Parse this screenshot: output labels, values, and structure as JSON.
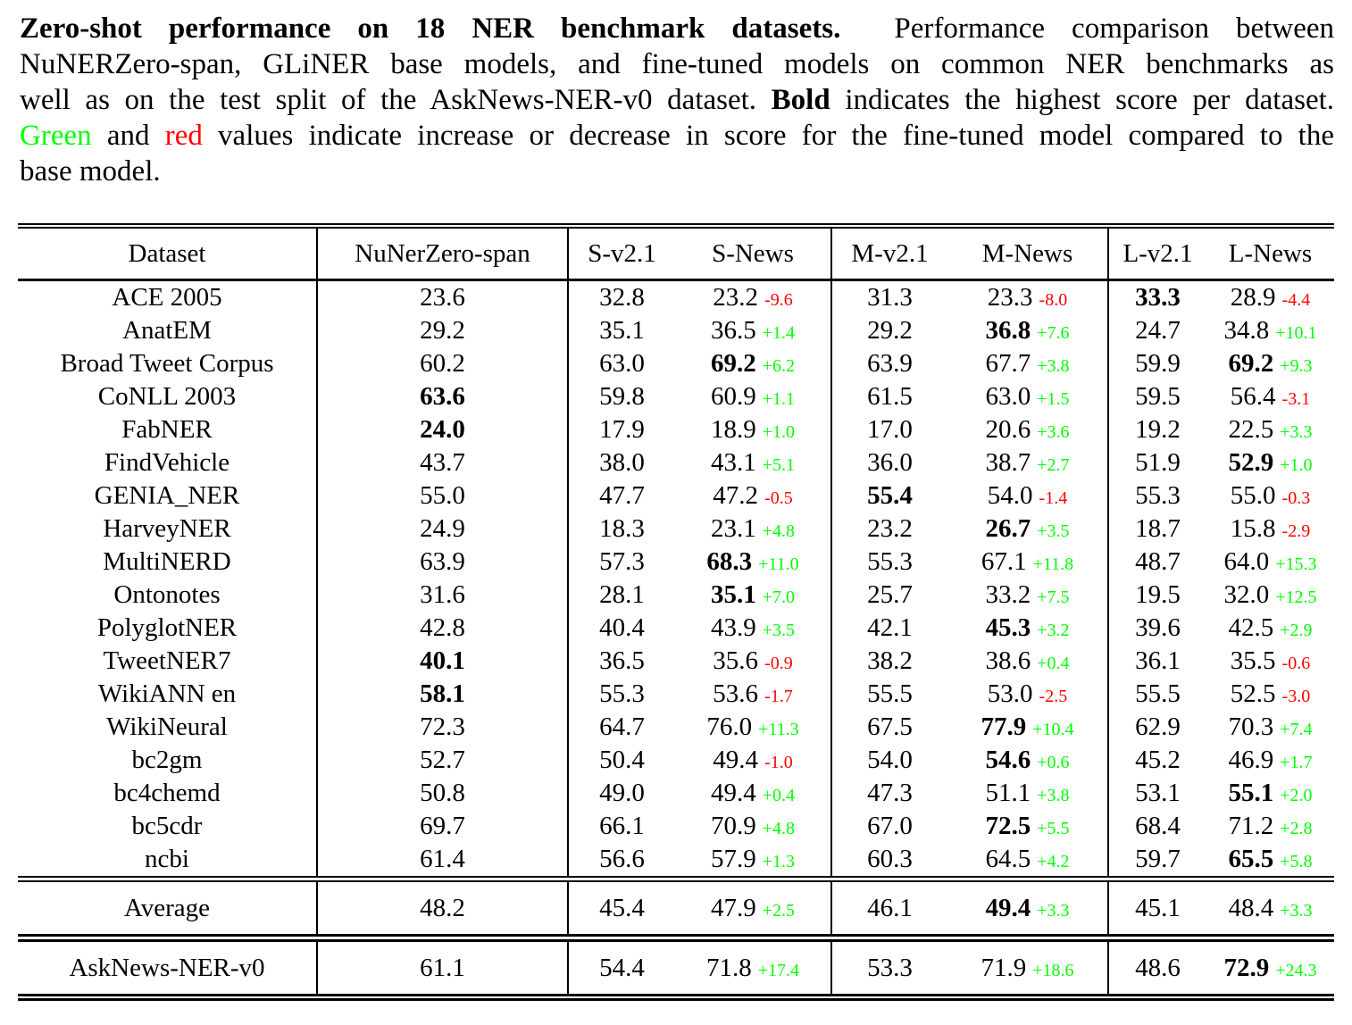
{
  "colors": {
    "increase": "#00ff00",
    "decrease": "#ff0000",
    "text": "#000000",
    "background": "#ffffff"
  },
  "caption": {
    "lines": [
      {
        "segments": [
          {
            "t": "Zero-shot performance on 18 NER benchmark datasets."
          },
          {
            "t": "  Performance comparison between"
          }
        ]
      },
      {
        "segments": [
          {
            "t": "NuNERZero-span, GLiNER base models, and fine-tuned models on common NER benchmarks as"
          }
        ]
      },
      {
        "segments": [
          {
            "t": "well as on the test split of the AskNews-NER-v0 dataset. "
          },
          {
            "t": "Bold"
          },
          {
            "t": " indicates the highest score per dataset."
          }
        ]
      },
      {
        "segments": [
          {
            "t": "Green"
          },
          {
            "t": " and "
          },
          {
            "t": "red"
          },
          {
            "t": " values indicate increase or decrease in score for the fine-tuned model compared to the"
          }
        ]
      },
      {
        "segments": [
          {
            "t": "base model."
          }
        ]
      }
    ]
  },
  "table": {
    "headers": [
      "Dataset",
      "NuNerZero-span",
      "S-v2.1",
      "S-News",
      "M-v2.1",
      "M-News",
      "L-v2.1",
      "L-News"
    ],
    "rows": [
      {
        "dataset": "ACE 2005",
        "cells": [
          {
            "v": "23.6"
          },
          {
            "v": "32.8"
          },
          {
            "v": "23.2",
            "delta": "-9.6"
          },
          {
            "v": "31.3"
          },
          {
            "v": "23.3",
            "delta": "-8.0"
          },
          {
            "v": "33.3",
            "bold": true
          },
          {
            "v": "28.9",
            "delta": "-4.4"
          }
        ]
      },
      {
        "dataset": "AnatEM",
        "cells": [
          {
            "v": "29.2"
          },
          {
            "v": "35.1"
          },
          {
            "v": "36.5",
            "delta": "+1.4"
          },
          {
            "v": "29.2"
          },
          {
            "v": "36.8",
            "bold": true,
            "delta": "+7.6"
          },
          {
            "v": "24.7"
          },
          {
            "v": "34.8",
            "delta": "+10.1"
          }
        ]
      },
      {
        "dataset": "Broad Tweet Corpus",
        "cells": [
          {
            "v": "60.2"
          },
          {
            "v": "63.0"
          },
          {
            "v": "69.2",
            "bold": true,
            "delta": "+6.2"
          },
          {
            "v": "63.9"
          },
          {
            "v": "67.7",
            "delta": "+3.8"
          },
          {
            "v": "59.9"
          },
          {
            "v": "69.2",
            "bold": true,
            "delta": "+9.3"
          }
        ]
      },
      {
        "dataset": "CoNLL 2003",
        "cells": [
          {
            "v": "63.6",
            "bold": true
          },
          {
            "v": "59.8"
          },
          {
            "v": "60.9",
            "delta": "+1.1"
          },
          {
            "v": "61.5"
          },
          {
            "v": "63.0",
            "delta": "+1.5"
          },
          {
            "v": "59.5"
          },
          {
            "v": "56.4",
            "delta": "-3.1"
          }
        ]
      },
      {
        "dataset": "FabNER",
        "cells": [
          {
            "v": "24.0",
            "bold": true
          },
          {
            "v": "17.9"
          },
          {
            "v": "18.9",
            "delta": "+1.0"
          },
          {
            "v": "17.0"
          },
          {
            "v": "20.6",
            "delta": "+3.6"
          },
          {
            "v": "19.2"
          },
          {
            "v": "22.5",
            "delta": "+3.3"
          }
        ]
      },
      {
        "dataset": "FindVehicle",
        "cells": [
          {
            "v": "43.7"
          },
          {
            "v": "38.0"
          },
          {
            "v": "43.1",
            "delta": "+5.1"
          },
          {
            "v": "36.0"
          },
          {
            "v": "38.7",
            "delta": "+2.7"
          },
          {
            "v": "51.9"
          },
          {
            "v": "52.9",
            "bold": true,
            "delta": "+1.0"
          }
        ]
      },
      {
        "dataset": "GENIA_NER",
        "cells": [
          {
            "v": "55.0"
          },
          {
            "v": "47.7"
          },
          {
            "v": "47.2",
            "delta": "-0.5"
          },
          {
            "v": "55.4",
            "bold": true
          },
          {
            "v": "54.0",
            "delta": "-1.4"
          },
          {
            "v": "55.3"
          },
          {
            "v": "55.0",
            "delta": "-0.3"
          }
        ]
      },
      {
        "dataset": "HarveyNER",
        "cells": [
          {
            "v": "24.9"
          },
          {
            "v": "18.3"
          },
          {
            "v": "23.1",
            "delta": "+4.8"
          },
          {
            "v": "23.2"
          },
          {
            "v": "26.7",
            "bold": true,
            "delta": "+3.5"
          },
          {
            "v": "18.7"
          },
          {
            "v": "15.8",
            "delta": "-2.9"
          }
        ]
      },
      {
        "dataset": "MultiNERD",
        "cells": [
          {
            "v": "63.9"
          },
          {
            "v": "57.3"
          },
          {
            "v": "68.3",
            "bold": true,
            "delta": "+11.0"
          },
          {
            "v": "55.3"
          },
          {
            "v": "67.1",
            "delta": "+11.8"
          },
          {
            "v": "48.7"
          },
          {
            "v": "64.0",
            "delta": "+15.3"
          }
        ]
      },
      {
        "dataset": "Ontonotes",
        "cells": [
          {
            "v": "31.6"
          },
          {
            "v": "28.1"
          },
          {
            "v": "35.1",
            "bold": true,
            "delta": "+7.0"
          },
          {
            "v": "25.7"
          },
          {
            "v": "33.2",
            "delta": "+7.5"
          },
          {
            "v": "19.5"
          },
          {
            "v": "32.0",
            "delta": "+12.5"
          }
        ]
      },
      {
        "dataset": "PolyglotNER",
        "cells": [
          {
            "v": "42.8"
          },
          {
            "v": "40.4"
          },
          {
            "v": "43.9",
            "delta": "+3.5"
          },
          {
            "v": "42.1"
          },
          {
            "v": "45.3",
            "bold": true,
            "delta": "+3.2"
          },
          {
            "v": "39.6"
          },
          {
            "v": "42.5",
            "delta": "+2.9"
          }
        ]
      },
      {
        "dataset": "TweetNER7",
        "cells": [
          {
            "v": "40.1",
            "bold": true
          },
          {
            "v": "36.5"
          },
          {
            "v": "35.6",
            "delta": "-0.9"
          },
          {
            "v": "38.2"
          },
          {
            "v": "38.6",
            "delta": "+0.4"
          },
          {
            "v": "36.1"
          },
          {
            "v": "35.5",
            "delta": "-0.6"
          }
        ]
      },
      {
        "dataset": "WikiANN en",
        "cells": [
          {
            "v": "58.1",
            "bold": true
          },
          {
            "v": "55.3"
          },
          {
            "v": "53.6",
            "delta": "-1.7"
          },
          {
            "v": "55.5"
          },
          {
            "v": "53.0",
            "delta": "-2.5"
          },
          {
            "v": "55.5"
          },
          {
            "v": "52.5",
            "delta": "-3.0"
          }
        ]
      },
      {
        "dataset": "WikiNeural",
        "cells": [
          {
            "v": "72.3"
          },
          {
            "v": "64.7"
          },
          {
            "v": "76.0",
            "delta": "+11.3"
          },
          {
            "v": "67.5"
          },
          {
            "v": "77.9",
            "bold": true,
            "delta": "+10.4"
          },
          {
            "v": "62.9"
          },
          {
            "v": "70.3",
            "delta": "+7.4"
          }
        ]
      },
      {
        "dataset": "bc2gm",
        "cells": [
          {
            "v": "52.7"
          },
          {
            "v": "50.4"
          },
          {
            "v": "49.4",
            "delta": "-1.0"
          },
          {
            "v": "54.0"
          },
          {
            "v": "54.6",
            "bold": true,
            "delta": "+0.6"
          },
          {
            "v": "45.2"
          },
          {
            "v": "46.9",
            "delta": "+1.7"
          }
        ]
      },
      {
        "dataset": "bc4chemd",
        "cells": [
          {
            "v": "50.8"
          },
          {
            "v": "49.0"
          },
          {
            "v": "49.4",
            "delta": "+0.4"
          },
          {
            "v": "47.3"
          },
          {
            "v": "51.1",
            "delta": "+3.8"
          },
          {
            "v": "53.1"
          },
          {
            "v": "55.1",
            "bold": true,
            "delta": "+2.0"
          }
        ]
      },
      {
        "dataset": "bc5cdr",
        "cells": [
          {
            "v": "69.7"
          },
          {
            "v": "66.1"
          },
          {
            "v": "70.9",
            "delta": "+4.8"
          },
          {
            "v": "67.0"
          },
          {
            "v": "72.5",
            "bold": true,
            "delta": "+5.5"
          },
          {
            "v": "68.4"
          },
          {
            "v": "71.2",
            "delta": "+2.8"
          }
        ]
      },
      {
        "dataset": "ncbi",
        "cells": [
          {
            "v": "61.4"
          },
          {
            "v": "56.6"
          },
          {
            "v": "57.9",
            "delta": "+1.3"
          },
          {
            "v": "60.3"
          },
          {
            "v": "64.5",
            "delta": "+4.2"
          },
          {
            "v": "59.7"
          },
          {
            "v": "65.5",
            "bold": true,
            "delta": "+5.8"
          }
        ]
      }
    ],
    "average": {
      "dataset": "Average",
      "cells": [
        {
          "v": "48.2"
        },
        {
          "v": "45.4"
        },
        {
          "v": "47.9",
          "delta": "+2.5"
        },
        {
          "v": "46.1"
        },
        {
          "v": "49.4",
          "bold": true,
          "delta": "+3.3"
        },
        {
          "v": "45.1"
        },
        {
          "v": "48.4",
          "delta": "+3.3"
        }
      ]
    },
    "asknews": {
      "dataset": "AskNews-NER-v0",
      "cells": [
        {
          "v": "61.1"
        },
        {
          "v": "54.4"
        },
        {
          "v": "71.8",
          "delta": "+17.4"
        },
        {
          "v": "53.3"
        },
        {
          "v": "71.9",
          "delta": "+18.6"
        },
        {
          "v": "48.6"
        },
        {
          "v": "72.9",
          "bold": true,
          "delta": "+24.3"
        }
      ]
    }
  }
}
